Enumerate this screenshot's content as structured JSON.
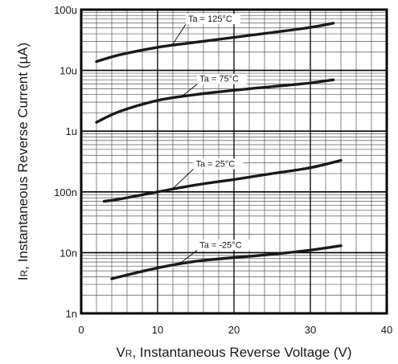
{
  "chart_data": {
    "type": "line",
    "xlabel": {
      "main": "V",
      "sub": "R",
      "rest": ", Instantaneous Reverse Voltage (V)"
    },
    "ylabel": {
      "main": "I",
      "sub": "R",
      "rest": ", Instantaneous Reverse Current (µA)"
    },
    "x_ticks": [
      "0",
      "10",
      "20",
      "30",
      "40"
    ],
    "y_ticks": [
      "1n",
      "10n",
      "100n",
      "1u",
      "10u",
      "100u"
    ],
    "xlim": [
      0,
      40
    ],
    "ylim": [
      1e-09,
      0.0001
    ],
    "y_scale": "log",
    "grid": true,
    "series": [
      {
        "name": "Ta = 125°C",
        "x": [
          2,
          5,
          10,
          15,
          20,
          25,
          30,
          33
        ],
        "y": [
          1.4e-05,
          1.8e-05,
          2.4e-05,
          2.9e-05,
          3.5e-05,
          4.2e-05,
          5.1e-05,
          6e-05
        ]
      },
      {
        "name": "Ta = 75°C",
        "x": [
          2,
          5,
          10,
          15,
          20,
          25,
          30,
          33
        ],
        "y": [
          1.4e-06,
          2.1e-06,
          3.2e-06,
          4e-06,
          4.7e-06,
          5.4e-06,
          6.2e-06,
          7e-06
        ]
      },
      {
        "name": "Ta = 25°C",
        "x": [
          3,
          5,
          10,
          15,
          20,
          25,
          30,
          34
        ],
        "y": [
          7e-08,
          7.6e-08,
          1e-07,
          1.3e-07,
          1.6e-07,
          2e-07,
          2.5e-07,
          3.3e-07
        ]
      },
      {
        "name": "Ta = -25°C",
        "x": [
          4,
          5,
          10,
          15,
          20,
          25,
          30,
          34
        ],
        "y": [
          3.7e-09,
          4e-09,
          5.6e-09,
          7.2e-09,
          8.3e-09,
          9.4e-09,
          1.1e-08,
          1.3e-08
        ]
      }
    ],
    "annotations": [
      {
        "text": "Ta = 125°C",
        "x": 14.0,
        "y": 6.3e-05,
        "series": 0,
        "leader_from": 11.9
      },
      {
        "text": "Ta = 75°C",
        "x": 15.5,
        "y": 6.5e-06,
        "series": 1,
        "leader_from": 13.1
      },
      {
        "text": "Ta = 25°C",
        "x": 15.0,
        "y": 2.6e-07,
        "series": 2,
        "leader_from": 11.9
      },
      {
        "text": "Ta = -25°C",
        "x": 15.5,
        "y": 1.2e-08,
        "series": 3,
        "leader_from": 12.8
      }
    ]
  }
}
